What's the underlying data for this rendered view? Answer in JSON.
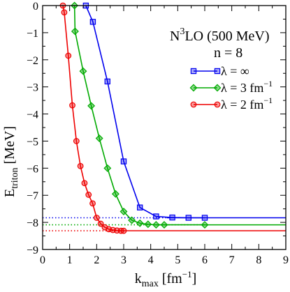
{
  "chart_data": {
    "type": "line",
    "xlabel": {
      "main": "k",
      "sub": "max",
      "unit": " [fm",
      "sup": "−1",
      "close": "]"
    },
    "ylabel": {
      "main": "E",
      "sub": "triton",
      "unit": " [MeV]"
    },
    "xlim": [
      0,
      9
    ],
    "ylim": [
      -9,
      0
    ],
    "x_ticks": [
      "0",
      "1",
      "2",
      "3",
      "4",
      "5",
      "6",
      "7",
      "8",
      "9"
    ],
    "y_ticks": [
      "0",
      "−1",
      "−2",
      "−3",
      "−4",
      "−5",
      "−6",
      "−7",
      "−8",
      "−9"
    ],
    "x_tick_values": [
      0,
      1,
      2,
      3,
      4,
      5,
      6,
      7,
      8,
      9
    ],
    "y_tick_values": [
      0,
      -1,
      -2,
      -3,
      -4,
      -5,
      -6,
      -7,
      -8,
      -9
    ],
    "annotations": {
      "line1": {
        "main": "N",
        "sup": "3",
        "rest": "LO (500 MeV)"
      },
      "line2": "n = 8"
    },
    "legend_position": "right-middle",
    "series": [
      {
        "name": "λ = ∞",
        "label": {
          "main": "λ = ∞",
          "sup": ""
        },
        "color": "#0000ee",
        "marker": "square",
        "x": [
          1.6,
          1.86,
          2.4,
          3.0,
          3.6,
          4.2,
          4.8,
          5.4,
          6.0
        ],
        "y": [
          0.0,
          -0.6,
          -2.8,
          -5.75,
          -7.45,
          -7.78,
          -7.82,
          -7.83,
          -7.83
        ],
        "asymptote": -7.83,
        "asymptote_start": 4.6
      },
      {
        "name": "λ = 3 fm−1",
        "label": {
          "main": "λ = 3 fm",
          "sup": "−1"
        },
        "color": "#00aa00",
        "marker": "diamond",
        "x": [
          1.18,
          1.2,
          1.5,
          1.8,
          2.1,
          2.4,
          2.7,
          3.0,
          3.3,
          3.6,
          3.9,
          4.2,
          4.5,
          6.0
        ],
        "y": [
          0.0,
          -0.95,
          -2.42,
          -3.7,
          -4.9,
          -6.0,
          -6.95,
          -7.6,
          -7.92,
          -8.03,
          -8.07,
          -8.09,
          -8.09,
          -8.09
        ],
        "asymptote": -8.09,
        "asymptote_start": 6.0
      },
      {
        "name": "λ = 2 fm−1",
        "label": {
          "main": "λ = 2 fm",
          "sup": "−1"
        },
        "color": "#ee0000",
        "marker": "circle",
        "x": [
          0.75,
          0.8,
          0.95,
          1.1,
          1.25,
          1.4,
          1.55,
          1.7,
          1.85,
          2.0,
          2.15,
          2.3,
          2.45,
          2.6,
          2.75,
          2.9,
          3.0
        ],
        "y": [
          0.0,
          -0.25,
          -1.85,
          -3.68,
          -5.0,
          -5.92,
          -6.55,
          -6.98,
          -7.3,
          -7.83,
          -8.05,
          -8.18,
          -8.25,
          -8.28,
          -8.3,
          -8.31,
          -8.31
        ],
        "asymptote": -8.31,
        "asymptote_start": 3.0
      }
    ]
  }
}
